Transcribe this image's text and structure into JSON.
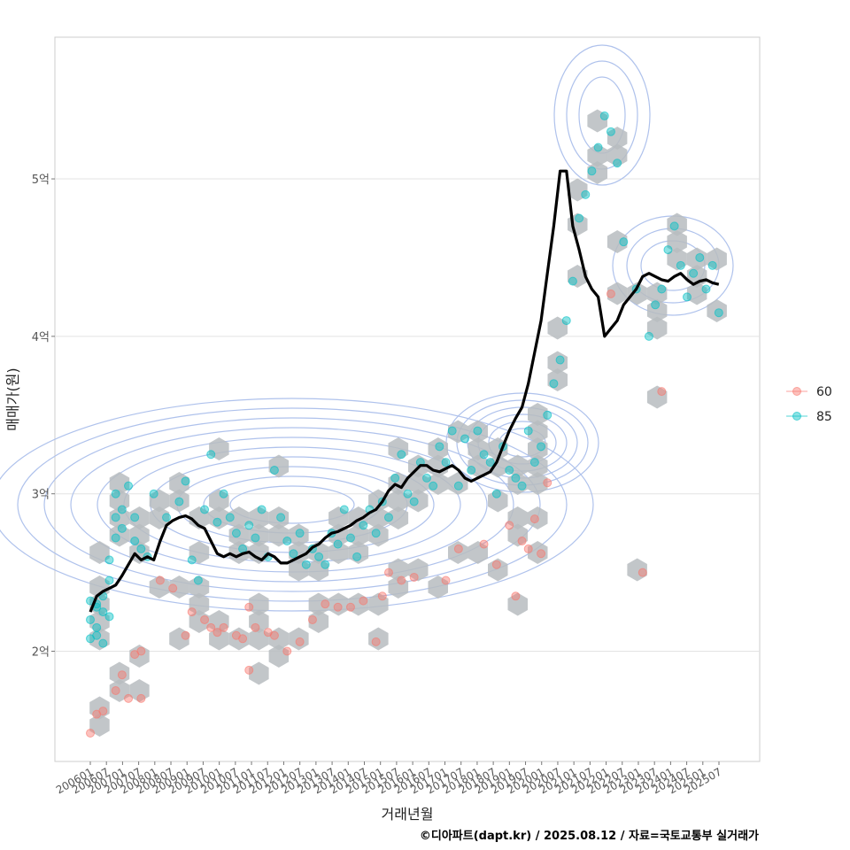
{
  "chart_data": {
    "type": "scatter",
    "xlabel": "거래년월",
    "ylabel": "매매가(원)",
    "caption": "©디아파트(dapt.kr) / 2025.08.12 / 자료=국토교통부 실거래가",
    "x_tick_labels": [
      "200601",
      "200607",
      "200701",
      "200707",
      "200801",
      "200807",
      "200901",
      "200907",
      "201001",
      "201007",
      "201101",
      "201107",
      "201201",
      "201207",
      "201301",
      "201307",
      "201401",
      "201407",
      "201501",
      "201507",
      "201601",
      "201607",
      "201701",
      "201707",
      "201801",
      "201807",
      "201901",
      "201907",
      "202001",
      "202007",
      "202101",
      "202107",
      "202201",
      "202207",
      "202301",
      "202307",
      "202401",
      "202407",
      "202501",
      "202507"
    ],
    "y_ticks": [
      2,
      3,
      4,
      5
    ],
    "y_tick_labels": [
      "2억",
      "3억",
      "4억",
      "5억"
    ],
    "ylim": [
      1.3,
      5.9
    ],
    "grid": true,
    "legend_position": "right",
    "legend": [
      {
        "label": "60",
        "color": "#F8766D"
      },
      {
        "label": "85",
        "color": "#00BFC4"
      }
    ],
    "series": [
      {
        "label": "60",
        "points": [
          [
            0,
            1.48
          ],
          [
            1,
            1.6
          ],
          [
            2,
            1.62
          ],
          [
            4,
            1.75
          ],
          [
            5,
            1.85
          ],
          [
            6,
            1.7
          ],
          [
            7,
            1.98
          ],
          [
            8,
            1.7
          ],
          [
            8,
            2.0
          ],
          [
            11,
            2.45
          ],
          [
            13,
            2.4
          ],
          [
            15,
            2.1
          ],
          [
            16,
            2.25
          ],
          [
            18,
            2.2
          ],
          [
            19,
            2.15
          ],
          [
            20,
            2.12
          ],
          [
            21,
            2.15
          ],
          [
            23,
            2.1
          ],
          [
            24,
            2.08
          ],
          [
            25,
            2.28
          ],
          [
            25,
            1.88
          ],
          [
            26,
            2.15
          ],
          [
            28,
            2.12
          ],
          [
            29,
            2.1
          ],
          [
            31,
            2.0
          ],
          [
            33,
            2.06
          ],
          [
            35,
            2.2
          ],
          [
            37,
            2.3
          ],
          [
            39,
            2.28
          ],
          [
            41,
            2.28
          ],
          [
            43,
            2.32
          ],
          [
            45,
            2.06
          ],
          [
            46,
            2.35
          ],
          [
            47,
            2.5
          ],
          [
            49,
            2.45
          ],
          [
            51,
            2.47
          ],
          [
            56,
            2.45
          ],
          [
            58,
            2.65
          ],
          [
            62,
            2.68
          ],
          [
            64,
            2.55
          ],
          [
            66,
            2.8
          ],
          [
            67,
            2.35
          ],
          [
            68,
            2.7
          ],
          [
            69,
            2.65
          ],
          [
            70,
            2.84
          ],
          [
            71,
            2.62
          ],
          [
            72,
            3.07
          ],
          [
            82,
            4.27
          ],
          [
            87,
            2.5
          ],
          [
            90,
            3.65
          ]
        ]
      },
      {
        "label": "85",
        "points": [
          [
            0,
            2.32
          ],
          [
            0,
            2.2
          ],
          [
            0,
            2.08
          ],
          [
            1,
            2.28
          ],
          [
            1,
            2.15
          ],
          [
            1,
            2.1
          ],
          [
            1,
            2.3
          ],
          [
            2,
            2.25
          ],
          [
            2,
            2.35
          ],
          [
            2,
            2.05
          ],
          [
            3,
            2.22
          ],
          [
            3,
            2.45
          ],
          [
            3,
            2.58
          ],
          [
            4,
            2.72
          ],
          [
            4,
            2.85
          ],
          [
            4,
            3.0
          ],
          [
            5,
            2.9
          ],
          [
            5,
            2.78
          ],
          [
            6,
            3.05
          ],
          [
            7,
            2.85
          ],
          [
            7,
            2.7
          ],
          [
            8,
            2.65
          ],
          [
            9,
            2.6
          ],
          [
            10,
            3.0
          ],
          [
            12,
            2.85
          ],
          [
            14,
            2.95
          ],
          [
            15,
            3.08
          ],
          [
            16,
            2.58
          ],
          [
            17,
            2.45
          ],
          [
            18,
            2.9
          ],
          [
            19,
            3.25
          ],
          [
            20,
            2.82
          ],
          [
            21,
            3.0
          ],
          [
            22,
            2.85
          ],
          [
            23,
            2.75
          ],
          [
            24,
            2.65
          ],
          [
            25,
            2.8
          ],
          [
            26,
            2.72
          ],
          [
            27,
            2.9
          ],
          [
            28,
            2.6
          ],
          [
            29,
            3.15
          ],
          [
            30,
            2.85
          ],
          [
            31,
            2.7
          ],
          [
            32,
            2.62
          ],
          [
            33,
            2.75
          ],
          [
            34,
            2.55
          ],
          [
            35,
            2.65
          ],
          [
            36,
            2.6
          ],
          [
            37,
            2.55
          ],
          [
            38,
            2.75
          ],
          [
            39,
            2.68
          ],
          [
            40,
            2.9
          ],
          [
            41,
            2.72
          ],
          [
            42,
            2.6
          ],
          [
            43,
            2.8
          ],
          [
            44,
            2.9
          ],
          [
            45,
            2.75
          ],
          [
            46,
            2.95
          ],
          [
            47,
            2.85
          ],
          [
            48,
            3.1
          ],
          [
            49,
            3.25
          ],
          [
            50,
            3.0
          ],
          [
            51,
            2.95
          ],
          [
            52,
            3.2
          ],
          [
            53,
            3.1
          ],
          [
            54,
            3.05
          ],
          [
            55,
            3.3
          ],
          [
            56,
            3.2
          ],
          [
            57,
            3.4
          ],
          [
            58,
            3.05
          ],
          [
            59,
            3.35
          ],
          [
            60,
            3.15
          ],
          [
            61,
            3.4
          ],
          [
            62,
            3.25
          ],
          [
            63,
            3.2
          ],
          [
            64,
            3.0
          ],
          [
            65,
            3.3
          ],
          [
            66,
            3.15
          ],
          [
            67,
            3.1
          ],
          [
            68,
            3.05
          ],
          [
            69,
            3.4
          ],
          [
            70,
            3.2
          ],
          [
            71,
            3.3
          ],
          [
            72,
            3.5
          ],
          [
            73,
            3.7
          ],
          [
            74,
            3.85
          ],
          [
            75,
            4.1
          ],
          [
            76,
            4.35
          ],
          [
            77,
            4.75
          ],
          [
            78,
            4.9
          ],
          [
            79,
            5.05
          ],
          [
            80,
            5.2
          ],
          [
            81,
            5.4
          ],
          [
            82,
            5.3
          ],
          [
            83,
            5.1
          ],
          [
            84,
            4.6
          ],
          [
            86,
            4.3
          ],
          [
            88,
            4.0
          ],
          [
            89,
            4.2
          ],
          [
            90,
            4.3
          ],
          [
            91,
            4.55
          ],
          [
            92,
            4.7
          ],
          [
            93,
            4.45
          ],
          [
            94,
            4.25
          ],
          [
            95,
            4.4
          ],
          [
            96,
            4.5
          ],
          [
            97,
            4.3
          ],
          [
            98,
            4.45
          ],
          [
            99,
            4.15
          ]
        ]
      }
    ],
    "trend_line": {
      "x": [
        0,
        1,
        2,
        3,
        4,
        5,
        6,
        7,
        8,
        9,
        10,
        11,
        12,
        13,
        14,
        15,
        16,
        17,
        18,
        19,
        20,
        21,
        22,
        23,
        24,
        25,
        26,
        27,
        28,
        29,
        30,
        31,
        32,
        33,
        34,
        35,
        36,
        37,
        38,
        39,
        40,
        41,
        42,
        43,
        44,
        45,
        46,
        47,
        48,
        49,
        50,
        51,
        52,
        53,
        54,
        55,
        56,
        57,
        58,
        59,
        60,
        61,
        62,
        63,
        64,
        65,
        66,
        67,
        68,
        69,
        70,
        71,
        72,
        73,
        74,
        75,
        76,
        77,
        78,
        79,
        80,
        81,
        82,
        83,
        84,
        85,
        86,
        87,
        88,
        89,
        90,
        91,
        92,
        93,
        94,
        95,
        96,
        97,
        98,
        99
      ],
      "y": [
        2.25,
        2.35,
        2.38,
        2.4,
        2.42,
        2.48,
        2.55,
        2.62,
        2.58,
        2.6,
        2.58,
        2.7,
        2.8,
        2.83,
        2.85,
        2.86,
        2.84,
        2.8,
        2.78,
        2.7,
        2.62,
        2.6,
        2.62,
        2.6,
        2.62,
        2.63,
        2.6,
        2.58,
        2.62,
        2.6,
        2.56,
        2.56,
        2.58,
        2.6,
        2.62,
        2.66,
        2.68,
        2.72,
        2.75,
        2.76,
        2.78,
        2.8,
        2.83,
        2.85,
        2.88,
        2.9,
        2.95,
        3.02,
        3.06,
        3.04,
        3.1,
        3.14,
        3.18,
        3.18,
        3.15,
        3.14,
        3.16,
        3.18,
        3.15,
        3.1,
        3.08,
        3.1,
        3.12,
        3.14,
        3.2,
        3.3,
        3.4,
        3.48,
        3.55,
        3.7,
        3.9,
        4.1,
        4.4,
        4.7,
        5.05,
        5.05,
        4.7,
        4.55,
        4.38,
        4.3,
        4.25,
        4.0,
        4.05,
        4.1,
        4.2,
        4.25,
        4.3,
        4.38,
        4.4,
        4.38,
        4.36,
        4.35,
        4.38,
        4.4,
        4.36,
        4.33,
        4.35,
        4.36,
        4.34,
        4.33
      ]
    },
    "density_contours": {
      "color": "#AFC2EC",
      "levels": 10
    },
    "hex_bins": {
      "color": "#B7BCC0"
    }
  }
}
